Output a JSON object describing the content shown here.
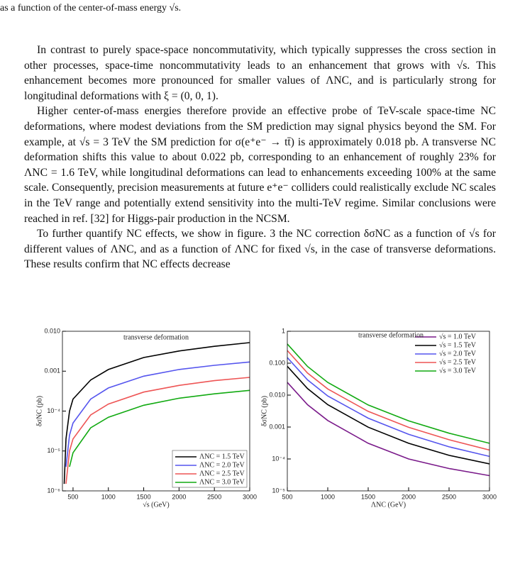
{
  "caption_tail": "as a function of the center-of-mass energy √s.",
  "paragraphs": [
    "In contrast to purely space-space noncommutativity, which typically suppresses the cross section in other processes, space-time noncommutativity leads to an enhancement that grows with √s. This enhancement becomes more pronounced for smaller values of ΛNC, and is particularly strong for longitudinal deformations with ξ = (0, 0, 1).",
    "Higher center-of-mass energies therefore provide an effective probe of TeV-scale space-time NC deformations, where modest deviations from the SM prediction may signal physics beyond the SM. For example, at √s = 3 TeV the SM prediction for σ(e⁺e⁻ → tt̄) is approximately 0.018 pb. A transverse NC deformation shifts this value to about 0.022 pb, corresponding to an enhancement of roughly 23% for ΛNC = 1.6 TeV, while longitudinal deformations can lead to enhancements exceeding 100% at the same scale. Consequently, precision measurements at future e⁺e⁻ colliders could realistically exclude NC scales in the TeV range and potentially extend sensitivity into the multi-TeV regime. Similar conclusions were reached in ref. [32] for Higgs-pair production in the NCSM.",
    "To further quantify NC effects, we show in figure. 3 the NC correction δσNC as a function of √s for different values of ΛNC, and as a function of ΛNC for fixed √s, in the case of transverse deformations. These results confirm that NC effects decrease"
  ],
  "chart_data": [
    {
      "type": "line",
      "annotation": "transverse deformation",
      "xlabel": "√s (GeV)",
      "ylabel": "δσNC (pb)",
      "x": [
        375,
        400,
        450,
        500,
        750,
        1000,
        1500,
        2000,
        2500,
        3000
      ],
      "series": [
        {
          "name": "ΛNC = 1.5 TeV",
          "color": "#000000",
          "values": [
            1.5e-06,
            2e-05,
            0.0001,
            0.0002,
            0.0006,
            0.0011,
            0.0022,
            0.0032,
            0.0042,
            0.0052
          ]
        },
        {
          "name": "ΛNC = 2.0 TeV",
          "color": "#5555ee",
          "values": [
            null,
            4e-06,
            2.5e-05,
            5e-05,
            0.0002,
            0.00038,
            0.00075,
            0.0011,
            0.0014,
            0.0017
          ]
        },
        {
          "name": "ΛNC = 2.5 TeV",
          "color": "#ee5555",
          "values": [
            null,
            1.5e-06,
            1e-05,
            2e-05,
            8e-05,
            0.00015,
            0.0003,
            0.00044,
            0.00058,
            0.0007
          ]
        },
        {
          "name": "ΛNC = 3.0 TeV",
          "color": "#11aa11",
          "values": [
            null,
            null,
            4e-06,
            9e-06,
            3.8e-05,
            7e-05,
            0.00014,
            0.00021,
            0.00027,
            0.00033
          ]
        }
      ],
      "xlim": [
        350,
        3000
      ],
      "xticks": [
        500,
        1000,
        1500,
        2000,
        2500,
        3000
      ],
      "ylim": [
        1e-06,
        0.01
      ],
      "log_y": true,
      "yticks": [
        {
          "value": 0.01,
          "label": "0.010"
        },
        {
          "value": 0.001,
          "label": "0.001"
        },
        {
          "value": 0.0001,
          "label": "10⁻⁴"
        },
        {
          "value": 1e-05,
          "label": "10⁻⁵"
        },
        {
          "value": 1e-06,
          "label": "10⁻⁶"
        }
      ],
      "legend": "lower right"
    },
    {
      "type": "line",
      "annotation": "transverse deformation",
      "xlabel": "ΛNC (GeV)",
      "ylabel": "δσNC (pb)",
      "x": [
        500,
        750,
        1000,
        1500,
        2000,
        2500,
        3000
      ],
      "series": [
        {
          "name": "√s = 1.0 TeV",
          "color": "#7a1a8a",
          "values": [
            0.025,
            0.005,
            0.0016,
            0.00031,
            0.0001,
            5e-05,
            3e-05
          ]
        },
        {
          "name": "√s = 1.5 TeV",
          "color": "#000000",
          "values": [
            0.08,
            0.016,
            0.005,
            0.00099,
            0.00031,
            0.00013,
            7e-05
          ]
        },
        {
          "name": "√s = 2.0 TeV",
          "color": "#5555ee",
          "values": [
            0.15,
            0.03,
            0.0094,
            0.0019,
            0.00059,
            0.00024,
            0.00012
          ]
        },
        {
          "name": "√s = 2.5 TeV",
          "color": "#ee5555",
          "values": [
            0.25,
            0.049,
            0.0156,
            0.0031,
            0.00098,
            0.0004,
            0.00019
          ]
        },
        {
          "name": "√s = 3.0 TeV",
          "color": "#11aa11",
          "values": [
            0.4,
            0.079,
            0.025,
            0.0049,
            0.00156,
            0.00064,
            0.00031
          ]
        }
      ],
      "xlim": [
        500,
        3000
      ],
      "xticks": [
        500,
        1000,
        1500,
        2000,
        2500,
        3000
      ],
      "ylim": [
        1e-05,
        1
      ],
      "log_y": true,
      "yticks": [
        1,
        {
          "value": 0.1,
          "label": "0.100"
        },
        {
          "value": 0.01,
          "label": "0.010"
        },
        {
          "value": 0.001,
          "label": "0.001"
        },
        {
          "value": 0.0001,
          "label": "10⁻⁴"
        },
        {
          "value": 1e-05,
          "label": "10⁻⁵"
        }
      ],
      "legend": "upper right"
    }
  ]
}
